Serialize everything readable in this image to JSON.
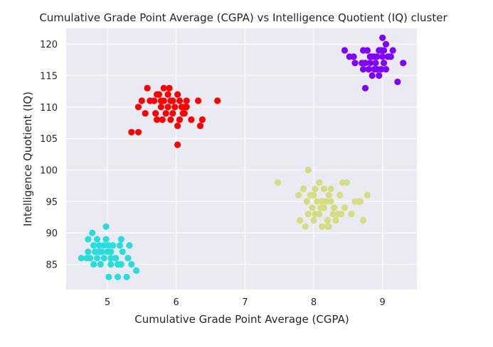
{
  "chart_data": {
    "type": "scatter",
    "title": "Cumulative Grade Point Average (CGPA) vs Intelligence Quotient (IQ) cluster",
    "xlabel": "Cumulative Grade Point Average (CGPA)",
    "ylabel": "Intelligence Quotient (IQ)",
    "xlim": [
      4.4,
      9.5
    ],
    "ylim": [
      81,
      122.5
    ],
    "xticks": [
      5,
      6,
      7,
      8,
      9
    ],
    "yticks": [
      85,
      90,
      95,
      100,
      105,
      110,
      115,
      120
    ],
    "grid": true,
    "background": "#eaeaf2",
    "series": [
      {
        "color": "#7f00ff",
        "points": [
          [
            8.45,
            119
          ],
          [
            8.52,
            118
          ],
          [
            8.58,
            118
          ],
          [
            8.6,
            117
          ],
          [
            8.72,
            119
          ],
          [
            8.78,
            119
          ],
          [
            8.75,
            117
          ],
          [
            8.72,
            116
          ],
          [
            8.8,
            116
          ],
          [
            8.82,
            117
          ],
          [
            8.85,
            118
          ],
          [
            8.88,
            118
          ],
          [
            8.9,
            117
          ],
          [
            8.92,
            116
          ],
          [
            8.95,
            119
          ],
          [
            8.98,
            119
          ],
          [
            9.0,
            118
          ],
          [
            9.02,
            117
          ],
          [
            9.05,
            116
          ],
          [
            9.08,
            118
          ],
          [
            9.12,
            118
          ],
          [
            9.15,
            119
          ],
          [
            9.0,
            121
          ],
          [
            9.05,
            120
          ],
          [
            8.85,
            115
          ],
          [
            8.95,
            115
          ],
          [
            8.75,
            113
          ],
          [
            9.22,
            114
          ],
          [
            9.3,
            117
          ],
          [
            8.98,
            116
          ],
          [
            8.88,
            116
          ],
          [
            9.02,
            119
          ],
          [
            8.82,
            118
          ],
          [
            8.92,
            118
          ],
          [
            8.7,
            117
          ]
        ]
      },
      {
        "color": "#ff0000",
        "points": [
          [
            5.35,
            106
          ],
          [
            5.45,
            106
          ],
          [
            5.5,
            111
          ],
          [
            5.45,
            110
          ],
          [
            5.58,
            113
          ],
          [
            5.55,
            109
          ],
          [
            5.68,
            111
          ],
          [
            5.7,
            109
          ],
          [
            5.72,
            108
          ],
          [
            5.75,
            112
          ],
          [
            5.78,
            110
          ],
          [
            5.8,
            108
          ],
          [
            5.82,
            113
          ],
          [
            5.82,
            111
          ],
          [
            5.85,
            109
          ],
          [
            5.88,
            112
          ],
          [
            5.88,
            110
          ],
          [
            5.9,
            113
          ],
          [
            5.92,
            108
          ],
          [
            5.95,
            109
          ],
          [
            5.95,
            111
          ],
          [
            5.98,
            110
          ],
          [
            6.02,
            107
          ],
          [
            6.02,
            104
          ],
          [
            6.05,
            108
          ],
          [
            6.05,
            111
          ],
          [
            6.08,
            110
          ],
          [
            6.1,
            109
          ],
          [
            6.12,
            109
          ],
          [
            6.15,
            111
          ],
          [
            6.15,
            110
          ],
          [
            6.22,
            108
          ],
          [
            6.32,
            111
          ],
          [
            6.35,
            107
          ],
          [
            6.38,
            108
          ],
          [
            6.6,
            111
          ],
          [
            5.62,
            111
          ],
          [
            5.78,
            111
          ],
          [
            5.92,
            111
          ],
          [
            6.02,
            112
          ],
          [
            5.72,
            112
          ],
          [
            6.12,
            110
          ]
        ]
      },
      {
        "color": "#2adddd",
        "points": [
          [
            4.62,
            86
          ],
          [
            4.7,
            86
          ],
          [
            4.72,
            89
          ],
          [
            4.72,
            87
          ],
          [
            4.78,
            90
          ],
          [
            4.8,
            88
          ],
          [
            4.8,
            85
          ],
          [
            4.82,
            87
          ],
          [
            4.85,
            89
          ],
          [
            4.85,
            86
          ],
          [
            4.88,
            88
          ],
          [
            4.9,
            85
          ],
          [
            4.92,
            87
          ],
          [
            4.95,
            86
          ],
          [
            4.98,
            91
          ],
          [
            4.98,
            89
          ],
          [
            5.0,
            87
          ],
          [
            5.02,
            88
          ],
          [
            5.02,
            83
          ],
          [
            5.05,
            86
          ],
          [
            5.05,
            87
          ],
          [
            5.08,
            88
          ],
          [
            5.12,
            86
          ],
          [
            5.15,
            85
          ],
          [
            5.15,
            83
          ],
          [
            5.18,
            88
          ],
          [
            5.2,
            89
          ],
          [
            5.2,
            85
          ],
          [
            5.22,
            87
          ],
          [
            5.28,
            83
          ],
          [
            5.3,
            86
          ],
          [
            5.32,
            88
          ],
          [
            5.35,
            85
          ],
          [
            5.42,
            84
          ],
          [
            4.95,
            88
          ],
          [
            4.75,
            86
          ],
          [
            5.05,
            85
          ],
          [
            4.88,
            87
          ]
        ]
      },
      {
        "color": "#d4dd80",
        "points": [
          [
            7.48,
            98
          ],
          [
            7.78,
            96
          ],
          [
            7.8,
            92
          ],
          [
            7.85,
            97
          ],
          [
            7.88,
            91
          ],
          [
            7.9,
            95
          ],
          [
            7.92,
            100
          ],
          [
            7.92,
            93
          ],
          [
            7.95,
            96
          ],
          [
            7.98,
            94
          ],
          [
            8.0,
            92
          ],
          [
            8.0,
            96
          ],
          [
            8.02,
            97
          ],
          [
            8.05,
            95
          ],
          [
            8.08,
            93
          ],
          [
            8.08,
            98
          ],
          [
            8.1,
            94
          ],
          [
            8.12,
            91
          ],
          [
            8.15,
            97
          ],
          [
            8.15,
            94
          ],
          [
            8.18,
            95
          ],
          [
            8.2,
            92
          ],
          [
            8.2,
            91
          ],
          [
            8.22,
            96
          ],
          [
            8.25,
            97
          ],
          [
            8.25,
            95
          ],
          [
            8.28,
            93
          ],
          [
            8.3,
            94
          ],
          [
            8.32,
            92
          ],
          [
            8.35,
            93
          ],
          [
            8.38,
            96
          ],
          [
            8.4,
            93
          ],
          [
            8.42,
            98
          ],
          [
            8.45,
            94
          ],
          [
            8.48,
            98
          ],
          [
            8.55,
            93
          ],
          [
            8.6,
            95
          ],
          [
            8.65,
            95
          ],
          [
            8.68,
            95
          ],
          [
            8.72,
            92
          ],
          [
            8.78,
            96
          ],
          [
            8.22,
            91
          ],
          [
            8.02,
            93
          ],
          [
            8.12,
            95
          ]
        ]
      }
    ]
  }
}
